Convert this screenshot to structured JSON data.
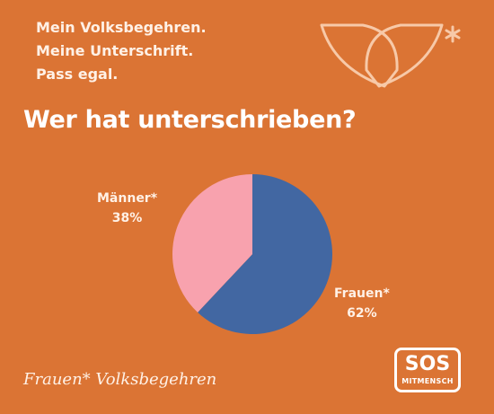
{
  "intro": {
    "line1": "Mein Volksbegehren.",
    "line2": "Meine Unterschrift.",
    "line3": "Pass egal."
  },
  "headline": "Wer hat unterschrieben?",
  "colors": {
    "background": "#DB7434",
    "frauen": "#4267A2",
    "maenner": "#F8A2AE",
    "text": "#FFF1E6"
  },
  "chart_data": {
    "type": "pie",
    "title": "Wer hat unterschrieben?",
    "categories": [
      "Männer*",
      "Frauen*"
    ],
    "values": [
      38,
      62
    ],
    "value_labels": [
      "38%",
      "62%"
    ],
    "colors": [
      "#F8A2AE",
      "#4267A2"
    ]
  },
  "footer": {
    "brand": "Frauen* Volksbegehren",
    "sos_big": "SOS",
    "sos_small": "MITMENSCH"
  }
}
